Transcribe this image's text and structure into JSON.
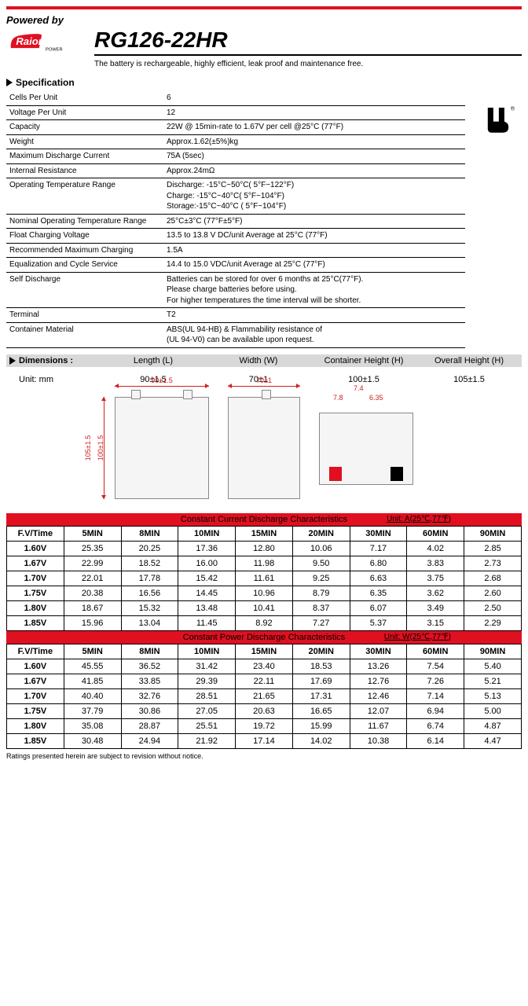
{
  "header": {
    "powered_by": "Powered by",
    "brand": "Raion",
    "brand_sub": "POWER",
    "product_code": "RG126-22HR",
    "description": "The battery is rechargeable, highly efficient, leak proof and maintenance free."
  },
  "spec_section_title": "Specification",
  "specs": [
    {
      "label": "Cells Per Unit",
      "value": "6"
    },
    {
      "label": "Voltage Per Unit",
      "value": "12"
    },
    {
      "label": "Capacity",
      "value": "22W @ 15min-rate to 1.67V per cell @25°C (77°F)"
    },
    {
      "label": "Weight",
      "value": "Approx.1.62(±5%)kg"
    },
    {
      "label": "Maximum Discharge Current",
      "value": "75A (5sec)"
    },
    {
      "label": "Internal Resistance",
      "value": "Approx.24mΩ"
    },
    {
      "label": "Operating Temperature Range",
      "value": "Discharge: -15°C~50°C( 5°F~122°F)\nCharge: -15°C~40°C( 5°F~104°F)\nStorage:-15°C~40°C ( 5°F~104°F)"
    },
    {
      "label": "Nominal Operating Temperature Range",
      "value": "25°C±3°C (77°F±5°F)"
    },
    {
      "label": "Float Charging Voltage",
      "value": "13.5 to 13.8 V DC/unit Average at 25°C (77°F)"
    },
    {
      "label": "Recommended Maximum Charging",
      "value": "1.5A"
    },
    {
      "label": "Equalization and Cycle Service",
      "value": "14.4 to 15.0 VDC/unit Average at 25°C (77°F)"
    },
    {
      "label": "Self Discharge",
      "value": "Batteries can be stored for over 6 months at 25°C(77°F).\nPlease charge batteries before using.\nFor higher temperatures the time interval will be shorter."
    },
    {
      "label": "Terminal",
      "value": "T2"
    },
    {
      "label": "Container Material",
      "value": "ABS(UL 94-HB) & Flammability resistance of\n(UL 94-V0) can be available upon request."
    }
  ],
  "dimensions": {
    "title": "Dimensions :",
    "unit_label": "Unit: mm",
    "headers": [
      "Length (L)",
      "Width (W)",
      "Container Height (H)",
      "Overall Height (H)"
    ],
    "values": [
      "90±1.5",
      "70±1",
      "100±1.5",
      "105±1.5"
    ],
    "diagram_labels": {
      "length": "90±1.5",
      "width": "70±1",
      "height_c": "100±1.5",
      "height_o": "105±1.5",
      "term_h": "7.8",
      "term_w": "7.4",
      "term_t": "6.35"
    }
  },
  "discharge_current": {
    "title": "Constant Current Discharge Characteristics",
    "unit": "Unit: A(25℃,77℉)",
    "col_header": "F.V/Time",
    "columns": [
      "5MIN",
      "8MIN",
      "10MIN",
      "15MIN",
      "20MIN",
      "30MIN",
      "60MIN",
      "90MIN"
    ],
    "rows": [
      {
        "v": "1.60V",
        "d": [
          "25.35",
          "20.25",
          "17.36",
          "12.80",
          "10.06",
          "7.17",
          "4.02",
          "2.85"
        ]
      },
      {
        "v": "1.67V",
        "d": [
          "22.99",
          "18.52",
          "16.00",
          "11.98",
          "9.50",
          "6.80",
          "3.83",
          "2.73"
        ]
      },
      {
        "v": "1.70V",
        "d": [
          "22.01",
          "17.78",
          "15.42",
          "11.61",
          "9.25",
          "6.63",
          "3.75",
          "2.68"
        ]
      },
      {
        "v": "1.75V",
        "d": [
          "20.38",
          "16.56",
          "14.45",
          "10.96",
          "8.79",
          "6.35",
          "3.62",
          "2.60"
        ]
      },
      {
        "v": "1.80V",
        "d": [
          "18.67",
          "15.32",
          "13.48",
          "10.41",
          "8.37",
          "6.07",
          "3.49",
          "2.50"
        ]
      },
      {
        "v": "1.85V",
        "d": [
          "15.96",
          "13.04",
          "11.45",
          "8.92",
          "7.27",
          "5.37",
          "3.15",
          "2.29"
        ]
      }
    ]
  },
  "discharge_power": {
    "title": "Constant Power Discharge Characteristics",
    "unit": "Unit: W(25℃,77℉)",
    "col_header": "F.V/Time",
    "columns": [
      "5MIN",
      "8MIN",
      "10MIN",
      "15MIN",
      "20MIN",
      "30MIN",
      "60MIN",
      "90MIN"
    ],
    "rows": [
      {
        "v": "1.60V",
        "d": [
          "45.55",
          "36.52",
          "31.42",
          "23.40",
          "18.53",
          "13.26",
          "7.54",
          "5.40"
        ]
      },
      {
        "v": "1.67V",
        "d": [
          "41.85",
          "33.85",
          "29.39",
          "22.11",
          "17.69",
          "12.76",
          "7.26",
          "5.21"
        ]
      },
      {
        "v": "1.70V",
        "d": [
          "40.40",
          "32.76",
          "28.51",
          "21.65",
          "17.31",
          "12.46",
          "7.14",
          "5.13"
        ]
      },
      {
        "v": "1.75V",
        "d": [
          "37.79",
          "30.86",
          "27.05",
          "20.63",
          "16.65",
          "12.07",
          "6.94",
          "5.00"
        ]
      },
      {
        "v": "1.80V",
        "d": [
          "35.08",
          "28.87",
          "25.51",
          "19.72",
          "15.99",
          "11.67",
          "6.74",
          "4.87"
        ]
      },
      {
        "v": "1.85V",
        "d": [
          "30.48",
          "24.94",
          "21.92",
          "17.14",
          "14.02",
          "10.38",
          "6.14",
          "4.47"
        ]
      }
    ]
  },
  "footnote": "Ratings presented herein are subject to revision without notice.",
  "colors": {
    "accent": "#e01020",
    "bar": "#e01020",
    "grey": "#d8d8d8"
  }
}
